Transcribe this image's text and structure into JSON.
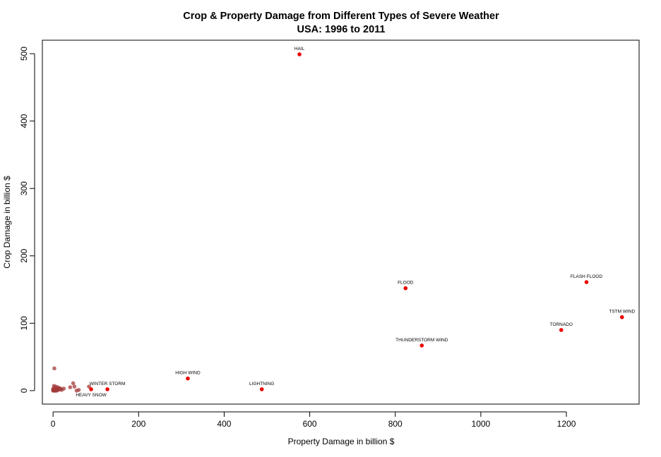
{
  "chart_data": {
    "type": "scatter",
    "title": "Crop & Property Damage from Different Types of Severe Weather",
    "subtitle": "USA: 1996 to 2011",
    "xlabel": "Property Damage in billion $",
    "ylabel": "Crop Damage in billion $",
    "xlim": [
      -25,
      1370
    ],
    "ylim": [
      -20,
      520
    ],
    "xticks": [
      "0",
      "200",
      "400",
      "600",
      "800",
      "1000",
      "1200"
    ],
    "yticks": [
      "0",
      "100",
      "200",
      "300",
      "400",
      "500"
    ],
    "highlight_color": "#ee0000",
    "minor_color": "#a33a3a",
    "labeled_points": [
      {
        "label": "HAIL",
        "x": 576,
        "y": 499
      },
      {
        "label": "FLASH FLOOD",
        "x": 1247,
        "y": 161
      },
      {
        "label": "FLOOD",
        "x": 824,
        "y": 152
      },
      {
        "label": "TSTM WIND",
        "x": 1330,
        "y": 109
      },
      {
        "label": "TORNADO",
        "x": 1188,
        "y": 90
      },
      {
        "label": "THUNDERSTORM WIND",
        "x": 862,
        "y": 67
      },
      {
        "label": "HIGH WIND",
        "x": 315,
        "y": 18
      },
      {
        "label": "LIGHTNING",
        "x": 488,
        "y": 2
      },
      {
        "label": "WINTER STORM",
        "x": 127,
        "y": 2
      },
      {
        "label": "HEAVY SNOW",
        "x": 89,
        "y": 2
      }
    ],
    "other_points": [
      {
        "x": 3,
        "y": 33
      },
      {
        "x": 47,
        "y": 11
      },
      {
        "x": 50,
        "y": 6
      },
      {
        "x": 40,
        "y": 5
      },
      {
        "x": 84,
        "y": 6
      },
      {
        "x": 2,
        "y": 7
      },
      {
        "x": 6,
        "y": 6
      },
      {
        "x": 10,
        "y": 5
      },
      {
        "x": 14,
        "y": 4
      },
      {
        "x": 18,
        "y": 3
      },
      {
        "x": 25,
        "y": 3
      },
      {
        "x": 60,
        "y": 1
      },
      {
        "x": 55,
        "y": 0
      },
      {
        "x": 20,
        "y": 1
      },
      {
        "x": 15,
        "y": 2
      },
      {
        "x": 12,
        "y": 1
      },
      {
        "x": 8,
        "y": 2
      },
      {
        "x": 5,
        "y": 1
      },
      {
        "x": 3,
        "y": 2
      },
      {
        "x": 1,
        "y": 1
      },
      {
        "x": 0,
        "y": 0
      },
      {
        "x": 2,
        "y": 0
      },
      {
        "x": 4,
        "y": 0
      },
      {
        "x": 6,
        "y": 0
      },
      {
        "x": 1,
        "y": 3
      },
      {
        "x": 0,
        "y": 2
      },
      {
        "x": 9,
        "y": 0
      },
      {
        "x": 11,
        "y": 3
      }
    ]
  }
}
